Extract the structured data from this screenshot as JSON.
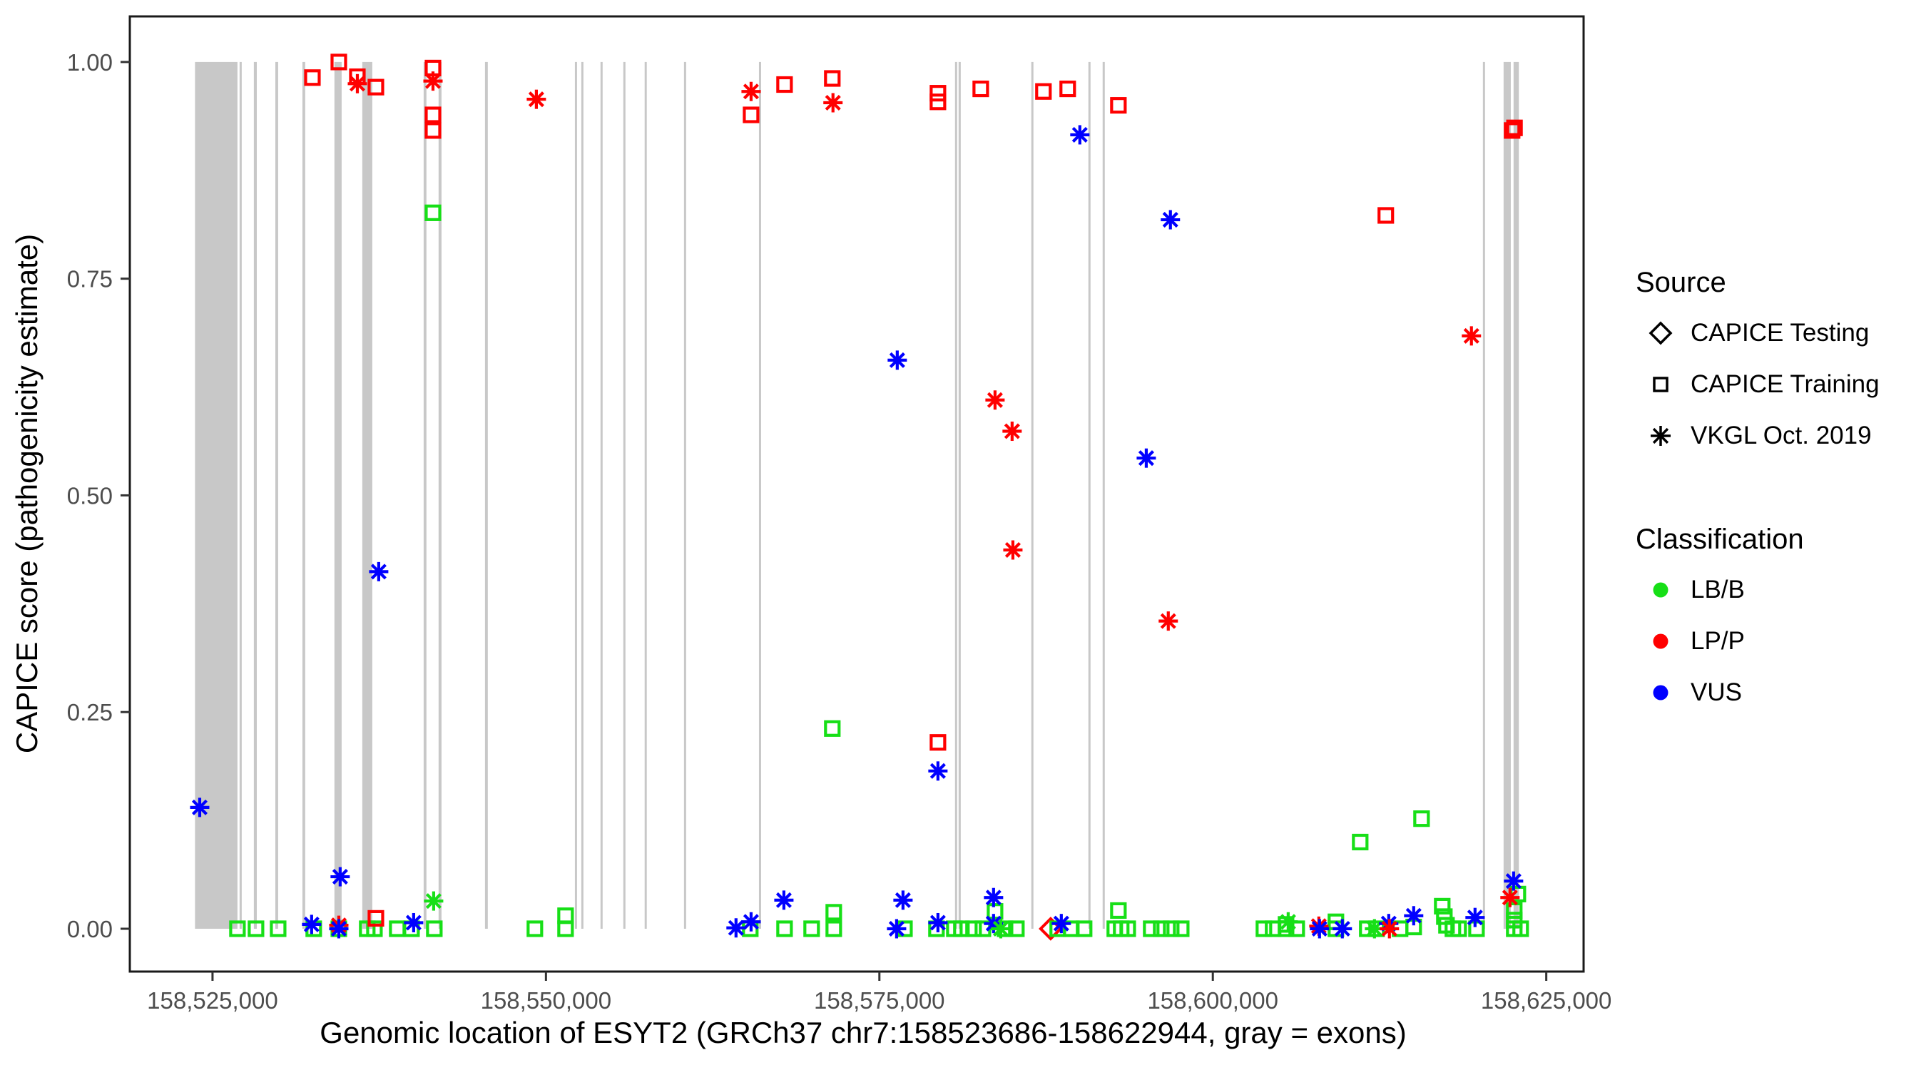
{
  "figure": {
    "legend_source": {
      "title": "Source",
      "items": [
        {
          "shape": "diamond",
          "label": "CAPICE Testing"
        },
        {
          "shape": "square",
          "label": "CAPICE Training"
        },
        {
          "shape": "asterisk",
          "label": "VKGL Oct. 2019"
        }
      ]
    },
    "legend_classification": {
      "title": "Classification",
      "items": [
        {
          "label": "LB/B",
          "color": "#17DF17"
        },
        {
          "label": "LP/P",
          "color": "#FF0000"
        },
        {
          "label": "VUS",
          "color": "#0000FF"
        }
      ]
    }
  },
  "chart_data": {
    "type": "scatter",
    "title": "",
    "xlabel": "Genomic location of ESYT2 (GRCh37 chr7:158523686-158622944, gray = exons)",
    "ylabel": "CAPICE score (pathogenicity estimate)",
    "xlim": [
      158518800,
      158627800
    ],
    "ylim": [
      -0.0494,
      1.0526
    ],
    "grid": false,
    "legend_position": "right",
    "x_ticks": [
      {
        "loc": 158525000,
        "label": "158,525,000"
      },
      {
        "loc": 158550000,
        "label": "158,550,000"
      },
      {
        "loc": 158575000,
        "label": "158,575,000"
      },
      {
        "loc": 158600000,
        "label": "158,600,000"
      },
      {
        "loc": 158625000,
        "label": "158,625,000"
      }
    ],
    "y_ticks": [
      {
        "v": 0.0,
        "label": "0.00"
      },
      {
        "v": 0.25,
        "label": "0.25"
      },
      {
        "v": 0.5,
        "label": "0.50"
      },
      {
        "v": 0.75,
        "label": "0.75"
      },
      {
        "v": 1.0,
        "label": "1.00"
      }
    ],
    "classification_colors": {
      "LB": "#17DF17",
      "LP": "#FF0000",
      "VUS": "#0000FF"
    },
    "classification_names": {
      "LB": "LB/B",
      "LP": "LP/P",
      "VUS": "VUS"
    },
    "shape_by_source": {
      "CAPICE Testing": "diamond",
      "CAPICE Training": "square",
      "VKGL Oct. 2019": "asterisk"
    },
    "exon_color": "#C8C8C8",
    "exons": [
      [
        158523686,
        158526870
      ],
      [
        158527030,
        158527190
      ],
      [
        158528100,
        158528320
      ],
      [
        158529710,
        158529920
      ],
      [
        158531740,
        158531950
      ],
      [
        158534140,
        158534680
      ],
      [
        158536230,
        158536980
      ],
      [
        158540830,
        158541040
      ],
      [
        158541950,
        158542170
      ],
      [
        158545430,
        158545640
      ],
      [
        158552170,
        158552330
      ],
      [
        158552650,
        158552810
      ],
      [
        158554090,
        158554250
      ],
      [
        158555800,
        158555960
      ],
      [
        158557400,
        158557560
      ],
      [
        158560350,
        158560510
      ],
      [
        158565970,
        158566130
      ],
      [
        158580670,
        158580830
      ],
      [
        158580940,
        158581100
      ],
      [
        158586390,
        158586550
      ],
      [
        158590670,
        158590830
      ],
      [
        158591740,
        158591900
      ],
      [
        158620250,
        158620410
      ],
      [
        158621800,
        158622340
      ],
      [
        158622550,
        158622944
      ]
    ],
    "points_format": "[genomic_location, capice_score, shape(s=square CAPICE Training, a=asterisk VKGL Oct. 2019, d=diamond CAPICE Testing), classification(LB=LB/B, LP=LP/P, VUS=VUS)]",
    "points": [
      [
        158532490,
        0.982,
        "s",
        "LP"
      ],
      [
        158534470,
        1.0,
        "s",
        "LP"
      ],
      [
        158535860,
        0.983,
        "s",
        "LP"
      ],
      [
        158535860,
        0.975,
        "a",
        "LP"
      ],
      [
        158537250,
        0.971,
        "s",
        "LP"
      ],
      [
        158541530,
        0.993,
        "s",
        "LP"
      ],
      [
        158541530,
        0.978,
        "a",
        "LP"
      ],
      [
        158541530,
        0.939,
        "s",
        "LP"
      ],
      [
        158541530,
        0.921,
        "s",
        "LP"
      ],
      [
        158541530,
        0.826,
        "s",
        "LB"
      ],
      [
        158549280,
        0.957,
        "a",
        "LP"
      ],
      [
        158565380,
        0.966,
        "a",
        "LP"
      ],
      [
        158565380,
        0.939,
        "s",
        "LP"
      ],
      [
        158567890,
        0.974,
        "s",
        "LP"
      ],
      [
        158571470,
        0.981,
        "s",
        "LP"
      ],
      [
        158571520,
        0.953,
        "a",
        "LP"
      ],
      [
        158579390,
        0.964,
        "s",
        "LP"
      ],
      [
        158579390,
        0.954,
        "s",
        "LP"
      ],
      [
        158582600,
        0.969,
        "s",
        "LP"
      ],
      [
        158587300,
        0.966,
        "s",
        "LP"
      ],
      [
        158589120,
        0.969,
        "s",
        "LP"
      ],
      [
        158592920,
        0.95,
        "s",
        "LP"
      ],
      [
        158590030,
        0.916,
        "a",
        "VUS"
      ],
      [
        158596820,
        0.818,
        "a",
        "VUS"
      ],
      [
        158612970,
        0.823,
        "s",
        "LP"
      ],
      [
        158622440,
        0.921,
        "s",
        "LP"
      ],
      [
        158622620,
        0.924,
        "s",
        "LP"
      ],
      [
        158576340,
        0.656,
        "a",
        "VUS"
      ],
      [
        158583670,
        0.61,
        "a",
        "LP"
      ],
      [
        158584950,
        0.574,
        "a",
        "LP"
      ],
      [
        158585010,
        0.437,
        "a",
        "LP"
      ],
      [
        158571470,
        0.231,
        "s",
        "LB"
      ],
      [
        158579390,
        0.215,
        "s",
        "LP"
      ],
      [
        158579390,
        0.182,
        "a",
        "VUS"
      ],
      [
        158595010,
        0.543,
        "a",
        "VUS"
      ],
      [
        158596660,
        0.355,
        "a",
        "LP"
      ],
      [
        158619390,
        0.684,
        "a",
        "LP"
      ],
      [
        158524040,
        0.14,
        "a",
        "VUS"
      ],
      [
        158537460,
        0.412,
        "a",
        "VUS"
      ],
      [
        158534570,
        0.06,
        "a",
        "VUS"
      ],
      [
        158541580,
        0.032,
        "a",
        "LB"
      ],
      [
        158611050,
        0.1,
        "s",
        "LB"
      ],
      [
        158615650,
        0.127,
        "s",
        "LB"
      ],
      [
        158526870,
        0.0,
        "s",
        "LB"
      ],
      [
        158528260,
        0.0,
        "s",
        "LB"
      ],
      [
        158529920,
        0.0,
        "s",
        "LB"
      ],
      [
        158532430,
        0.005,
        "a",
        "VUS"
      ],
      [
        158532590,
        0.0,
        "s",
        "LB"
      ],
      [
        158534470,
        0.004,
        "a",
        "LP"
      ],
      [
        158534470,
        0.0,
        "a",
        "VUS"
      ],
      [
        158534470,
        0.0,
        "s",
        "LB"
      ],
      [
        158536600,
        0.0,
        "s",
        "LB"
      ],
      [
        158537140,
        0.0,
        "s",
        "LB"
      ],
      [
        158537250,
        0.012,
        "s",
        "LP"
      ],
      [
        158538850,
        0.0,
        "s",
        "LB"
      ],
      [
        158539920,
        0.0,
        "s",
        "LB"
      ],
      [
        158540080,
        0.007,
        "a",
        "VUS"
      ],
      [
        158541630,
        0.0,
        "s",
        "LB"
      ],
      [
        158549170,
        0.0,
        "s",
        "LB"
      ],
      [
        158551470,
        0.015,
        "s",
        "LB"
      ],
      [
        158551470,
        0.0,
        "s",
        "LB"
      ],
      [
        158564250,
        0.001,
        "a",
        "VUS"
      ],
      [
        158565320,
        0.0,
        "s",
        "LB"
      ],
      [
        158565380,
        0.008,
        "a",
        "VUS"
      ],
      [
        158567840,
        0.033,
        "a",
        "VUS"
      ],
      [
        158567890,
        0.0,
        "s",
        "LB"
      ],
      [
        158569920,
        0.0,
        "s",
        "LB"
      ],
      [
        158571580,
        0.0,
        "s",
        "LB"
      ],
      [
        158571580,
        0.019,
        "s",
        "LB"
      ],
      [
        158576290,
        0.0,
        "a",
        "VUS"
      ],
      [
        158576770,
        0.033,
        "a",
        "VUS"
      ],
      [
        158576880,
        0.0,
        "s",
        "LB"
      ],
      [
        158579280,
        0.0,
        "s",
        "LB"
      ],
      [
        158579390,
        0.007,
        "a",
        "VUS"
      ],
      [
        158580620,
        0.0,
        "s",
        "LB"
      ],
      [
        158581150,
        0.0,
        "s",
        "LB"
      ],
      [
        158582060,
        0.0,
        "s",
        "LB"
      ],
      [
        158582760,
        0.0,
        "s",
        "LB"
      ],
      [
        158583560,
        0.036,
        "a",
        "VUS"
      ],
      [
        158583670,
        0.02,
        "s",
        "LB"
      ],
      [
        158583560,
        0.006,
        "a",
        "VUS"
      ],
      [
        158584100,
        0.0,
        "a",
        "LB"
      ],
      [
        158584420,
        0.0,
        "s",
        "LB"
      ],
      [
        158585270,
        0.0,
        "s",
        "LB"
      ],
      [
        158587840,
        0.0,
        "d",
        "LP"
      ],
      [
        158588370,
        0.0,
        "s",
        "LB"
      ],
      [
        158588640,
        0.006,
        "a",
        "VUS"
      ],
      [
        158589390,
        0.0,
        "s",
        "LB"
      ],
      [
        158590350,
        0.0,
        "s",
        "LB"
      ],
      [
        158592650,
        0.0,
        "s",
        "LB"
      ],
      [
        158592920,
        0.021,
        "s",
        "LB"
      ],
      [
        158593130,
        0.0,
        "s",
        "LB"
      ],
      [
        158593620,
        0.0,
        "s",
        "LB"
      ],
      [
        158595380,
        0.0,
        "s",
        "LB"
      ],
      [
        158596130,
        0.0,
        "s",
        "LB"
      ],
      [
        158596880,
        0.0,
        "s",
        "LB"
      ],
      [
        158597630,
        0.0,
        "s",
        "LB"
      ],
      [
        158603830,
        0.0,
        "s",
        "LB"
      ],
      [
        158604520,
        0.0,
        "s",
        "LB"
      ],
      [
        158605490,
        0.005,
        "s",
        "LB"
      ],
      [
        158605490,
        0.0,
        "s",
        "LB"
      ],
      [
        158605650,
        0.008,
        "a",
        "LB"
      ],
      [
        158606290,
        0.0,
        "s",
        "LB"
      ],
      [
        158607950,
        0.003,
        "a",
        "LP"
      ],
      [
        158608000,
        0.0,
        "a",
        "VUS"
      ],
      [
        158609230,
        0.008,
        "s",
        "LB"
      ],
      [
        158609230,
        0.0,
        "s",
        "LB"
      ],
      [
        158609710,
        0.0,
        "a",
        "VUS"
      ],
      [
        158611580,
        0.0,
        "s",
        "LB"
      ],
      [
        158612120,
        0.0,
        "a",
        "LB"
      ],
      [
        158612280,
        0.0,
        "s",
        "LB"
      ],
      [
        158613190,
        0.006,
        "a",
        "VUS"
      ],
      [
        158613240,
        0.0,
        "a",
        "LP"
      ],
      [
        158614040,
        0.0,
        "s",
        "LB"
      ],
      [
        158615060,
        0.002,
        "s",
        "LB"
      ],
      [
        158615060,
        0.015,
        "a",
        "VUS"
      ],
      [
        158617200,
        0.026,
        "s",
        "LB"
      ],
      [
        158617360,
        0.014,
        "s",
        "LB"
      ],
      [
        158617520,
        0.004,
        "s",
        "LB"
      ],
      [
        158618000,
        0.0,
        "s",
        "LB"
      ],
      [
        158618430,
        0.0,
        "s",
        "LB"
      ],
      [
        158619660,
        0.013,
        "a",
        "VUS"
      ],
      [
        158619770,
        0.0,
        "s",
        "LB"
      ],
      [
        158622550,
        0.055,
        "a",
        "VUS"
      ],
      [
        158622280,
        0.036,
        "a",
        "LP"
      ],
      [
        158622870,
        0.04,
        "s",
        "LB"
      ],
      [
        158622600,
        0.021,
        "s",
        "LB"
      ],
      [
        158622600,
        0.01,
        "s",
        "LB"
      ],
      [
        158622600,
        0.0,
        "s",
        "LB"
      ],
      [
        158623080,
        0.0,
        "s",
        "LB"
      ]
    ]
  }
}
